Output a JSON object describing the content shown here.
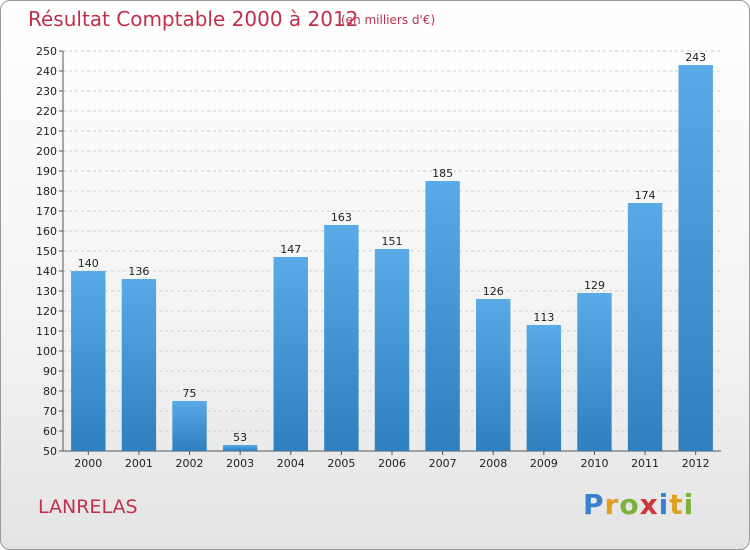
{
  "header": {
    "title": "Résultat Comptable 2000 à 2012",
    "unit_note": "(en milliers d'€)"
  },
  "footer": {
    "commune": "LANRELAS",
    "logo_text": "Proxiti"
  },
  "colors": {
    "title": "#c0304a",
    "bar_top": "#5aaae8",
    "bar_bottom": "#2f7fbf"
  },
  "chart_data": {
    "type": "bar",
    "categories": [
      "2000",
      "2001",
      "2002",
      "2003",
      "2004",
      "2005",
      "2006",
      "2007",
      "2008",
      "2009",
      "2010",
      "2011",
      "2012"
    ],
    "values": [
      140,
      136,
      75,
      53,
      147,
      163,
      151,
      185,
      126,
      113,
      129,
      174,
      243
    ],
    "title": "Résultat Comptable 2000 à 2012",
    "subtitle": "(en milliers d'€)",
    "ylim": [
      50,
      250
    ],
    "ytick_step": 10,
    "grid": true,
    "data_labels": true
  }
}
